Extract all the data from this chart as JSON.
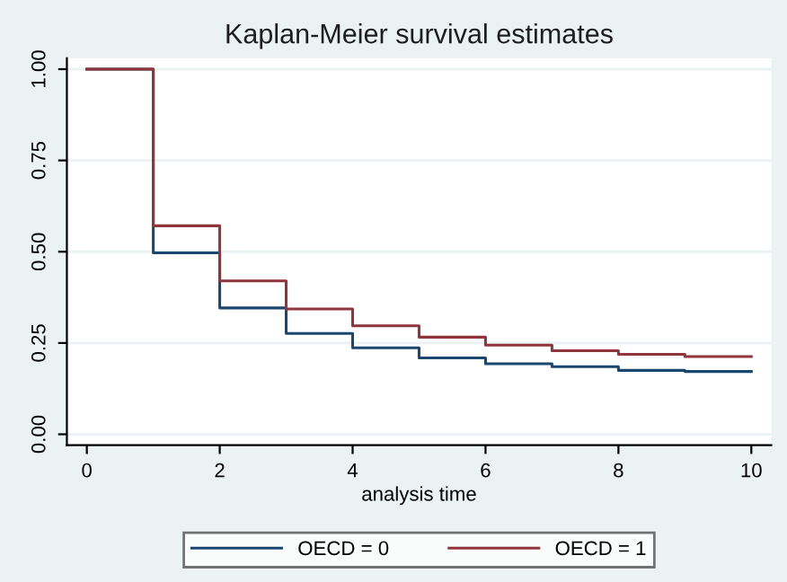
{
  "chart_data": {
    "type": "step",
    "title": "Kaplan-Meier survival estimates",
    "xlabel": "analysis time",
    "x": [
      0,
      1,
      2,
      3,
      4,
      5,
      6,
      7,
      8,
      9,
      10
    ],
    "series": [
      {
        "name": "OECD = 0",
        "color": "#1a476f",
        "values": [
          1.0,
          0.497,
          0.346,
          0.276,
          0.237,
          0.209,
          0.193,
          0.185,
          0.175,
          0.172,
          0.172
        ]
      },
      {
        "name": "OECD = 1",
        "color": "#90353b",
        "values": [
          1.0,
          0.571,
          0.42,
          0.343,
          0.297,
          0.266,
          0.244,
          0.229,
          0.219,
          0.213,
          0.213
        ]
      }
    ],
    "xlim": [
      -0.3,
      10.3
    ],
    "ylim": [
      -0.03,
      1.03
    ],
    "xticks": [
      0,
      2,
      4,
      6,
      8,
      10
    ],
    "yticks": [
      {
        "value": 0,
        "label": "0.00"
      },
      {
        "value": 0.25,
        "label": "0.25"
      },
      {
        "value": 0.5,
        "label": "0.50"
      },
      {
        "value": 0.75,
        "label": "0.75"
      },
      {
        "value": 1,
        "label": "1.00"
      }
    ],
    "grid": "y",
    "legend": "bottom",
    "line_style": "solid"
  }
}
